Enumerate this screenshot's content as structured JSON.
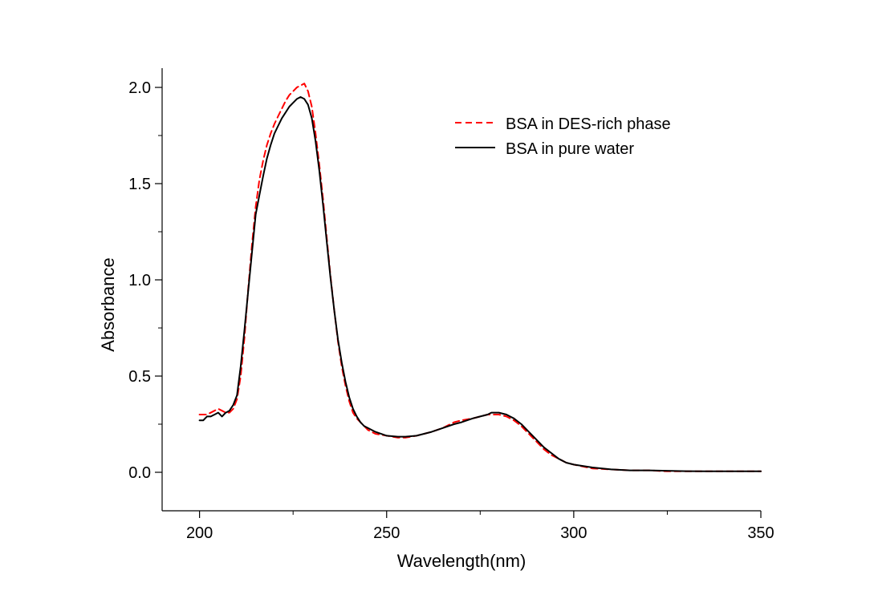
{
  "chart_data": {
    "type": "line",
    "xlabel": "Wavelength(nm)",
    "ylabel": "Absorbance",
    "xlim": [
      190,
      350
    ],
    "ylim": [
      -0.2,
      2.1
    ],
    "xticks": [
      200,
      250,
      300,
      350
    ],
    "yticks": [
      0.0,
      0.5,
      1.0,
      1.5,
      2.0
    ],
    "xtick_labels": [
      "200",
      "250",
      "300",
      "350"
    ],
    "ytick_labels": [
      "0.0",
      "0.5",
      "1.0",
      "1.5",
      "2.0"
    ],
    "legend_position": "top-right",
    "grid": false,
    "series": [
      {
        "name": "BSA in DES-rich phase",
        "color": "#ff0000",
        "dash": "dashed",
        "x": [
          200,
          202,
          204,
          205,
          206,
          207,
          208,
          209,
          210,
          211,
          212,
          213,
          214,
          215,
          216,
          217,
          218,
          219,
          220,
          221,
          222,
          223,
          224,
          225,
          226,
          227,
          228,
          229,
          230,
          231,
          232,
          233,
          234,
          235,
          236,
          237,
          238,
          239,
          240,
          241,
          242,
          243,
          244,
          245,
          247,
          250,
          253,
          255,
          258,
          260,
          262,
          265,
          268,
          270,
          273,
          275,
          277,
          278,
          280,
          282,
          284,
          286,
          288,
          290,
          292,
          294,
          296,
          298,
          300,
          305,
          310,
          315,
          320,
          325,
          330,
          335,
          340,
          345,
          350
        ],
        "y": [
          0.3,
          0.3,
          0.32,
          0.33,
          0.32,
          0.31,
          0.31,
          0.33,
          0.38,
          0.5,
          0.7,
          0.95,
          1.18,
          1.38,
          1.52,
          1.62,
          1.7,
          1.76,
          1.81,
          1.85,
          1.89,
          1.93,
          1.96,
          1.98,
          2.0,
          2.01,
          2.02,
          1.98,
          1.9,
          1.76,
          1.6,
          1.42,
          1.22,
          1.02,
          0.84,
          0.68,
          0.55,
          0.45,
          0.37,
          0.31,
          0.28,
          0.26,
          0.24,
          0.22,
          0.2,
          0.19,
          0.18,
          0.18,
          0.19,
          0.2,
          0.21,
          0.23,
          0.26,
          0.27,
          0.28,
          0.29,
          0.3,
          0.3,
          0.3,
          0.29,
          0.27,
          0.24,
          0.2,
          0.16,
          0.12,
          0.09,
          0.07,
          0.05,
          0.04,
          0.02,
          0.015,
          0.01,
          0.01,
          0.005,
          0.005,
          0.005,
          0.005,
          0.005,
          0.005
        ]
      },
      {
        "name": "BSA in pure water",
        "color": "#000000",
        "dash": "solid",
        "x": [
          200,
          201,
          202,
          203,
          204,
          205,
          206,
          207,
          208,
          209,
          210,
          211,
          212,
          213,
          214,
          215,
          216,
          217,
          218,
          219,
          220,
          221,
          222,
          223,
          224,
          225,
          226,
          227,
          228,
          229,
          230,
          231,
          232,
          233,
          234,
          235,
          236,
          237,
          238,
          239,
          240,
          241,
          242,
          243,
          244,
          245,
          247,
          250,
          253,
          255,
          258,
          260,
          262,
          265,
          268,
          270,
          273,
          275,
          277,
          278,
          280,
          282,
          284,
          286,
          288,
          290,
          292,
          294,
          296,
          298,
          300,
          305,
          310,
          315,
          320,
          325,
          330,
          335,
          340,
          345,
          350
        ],
        "y": [
          0.27,
          0.27,
          0.29,
          0.29,
          0.3,
          0.31,
          0.29,
          0.31,
          0.32,
          0.35,
          0.4,
          0.55,
          0.74,
          0.94,
          1.14,
          1.34,
          1.44,
          1.54,
          1.63,
          1.7,
          1.76,
          1.8,
          1.84,
          1.87,
          1.9,
          1.92,
          1.94,
          1.95,
          1.94,
          1.91,
          1.84,
          1.72,
          1.57,
          1.39,
          1.2,
          1.01,
          0.84,
          0.69,
          0.57,
          0.47,
          0.39,
          0.33,
          0.29,
          0.26,
          0.24,
          0.23,
          0.21,
          0.19,
          0.185,
          0.185,
          0.19,
          0.2,
          0.21,
          0.23,
          0.25,
          0.26,
          0.28,
          0.29,
          0.3,
          0.31,
          0.31,
          0.3,
          0.28,
          0.25,
          0.21,
          0.17,
          0.13,
          0.1,
          0.07,
          0.05,
          0.04,
          0.025,
          0.015,
          0.01,
          0.01,
          0.008,
          0.006,
          0.005,
          0.005,
          0.005,
          0.005
        ]
      }
    ]
  }
}
